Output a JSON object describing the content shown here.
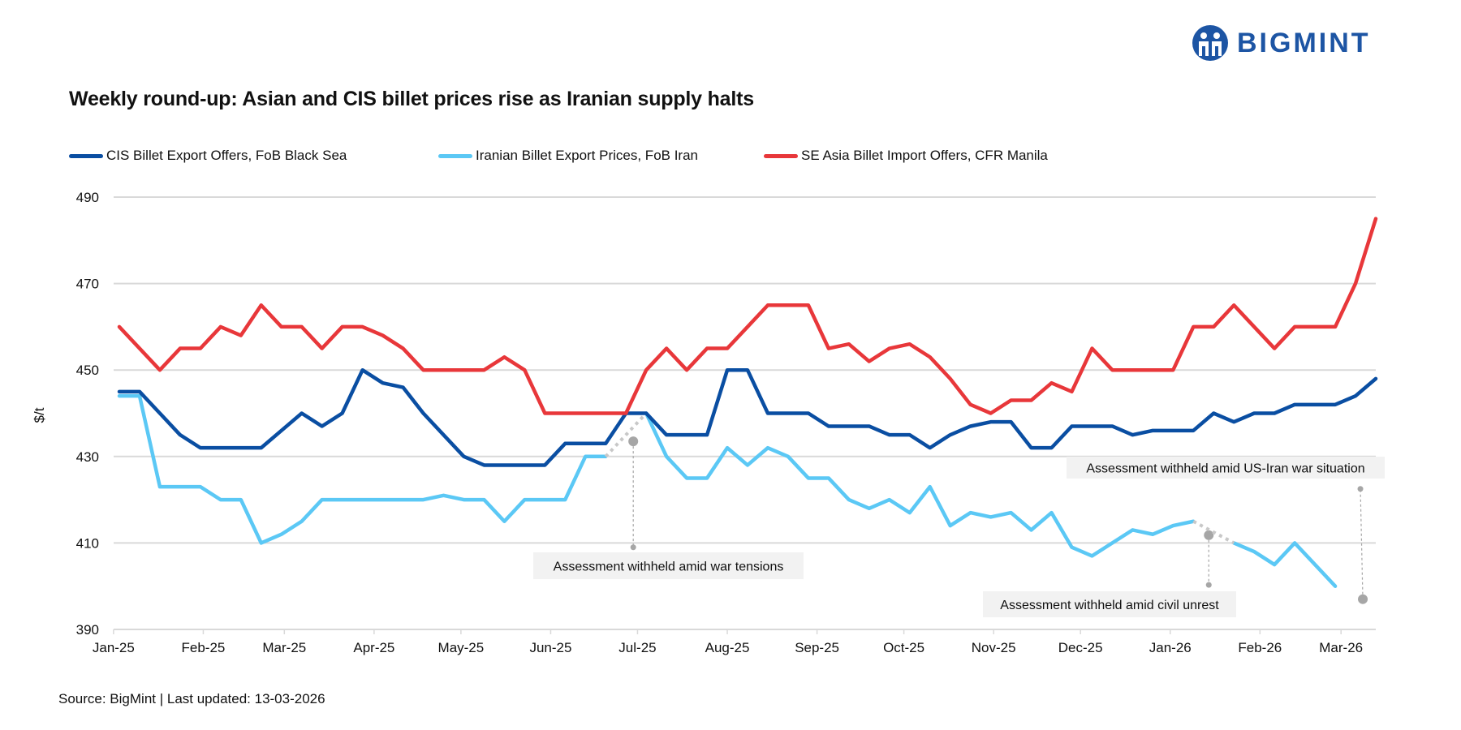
{
  "logo": {
    "text": "BIGMINT",
    "color": "#1d55a4"
  },
  "chart_data": {
    "type": "line",
    "title": "Weekly round-up: Asian and CIS billet prices rise as Iranian supply halts",
    "ylabel": "$/t",
    "xlabel": "",
    "ylim": [
      390,
      490
    ],
    "yticks": [
      390,
      410,
      430,
      450,
      470,
      490
    ],
    "xticks": [
      {
        "label": "Jan-25",
        "date": "2025-01-01"
      },
      {
        "label": "Feb-25",
        "date": "2025-02-01"
      },
      {
        "label": "Mar-25",
        "date": "2025-03-01"
      },
      {
        "label": "Apr-25",
        "date": "2025-04-01"
      },
      {
        "label": "May-25",
        "date": "2025-05-01"
      },
      {
        "label": "Jun-25",
        "date": "2025-06-01"
      },
      {
        "label": "Jul-25",
        "date": "2025-07-01"
      },
      {
        "label": "Aug-25",
        "date": "2025-08-01"
      },
      {
        "label": "Sep-25",
        "date": "2025-09-01"
      },
      {
        "label": "Oct-25",
        "date": "2025-10-01"
      },
      {
        "label": "Nov-25",
        "date": "2025-11-01"
      },
      {
        "label": "Dec-25",
        "date": "2025-12-01"
      },
      {
        "label": "Jan-26",
        "date": "2026-01-01"
      },
      {
        "label": "Feb-26",
        "date": "2026-02-01"
      },
      {
        "label": "Mar-26",
        "date": "2026-03-01"
      }
    ],
    "grid": true,
    "legend": "top",
    "x": [
      "2025-01-03",
      "2025-01-10",
      "2025-01-17",
      "2025-01-24",
      "2025-01-31",
      "2025-02-07",
      "2025-02-14",
      "2025-02-21",
      "2025-02-28",
      "2025-03-07",
      "2025-03-14",
      "2025-03-21",
      "2025-03-28",
      "2025-04-04",
      "2025-04-11",
      "2025-04-18",
      "2025-04-25",
      "2025-05-02",
      "2025-05-09",
      "2025-05-16",
      "2025-05-23",
      "2025-05-30",
      "2025-06-06",
      "2025-06-13",
      "2025-06-20",
      "2025-06-27",
      "2025-07-04",
      "2025-07-11",
      "2025-07-18",
      "2025-07-25",
      "2025-08-01",
      "2025-08-08",
      "2025-08-15",
      "2025-08-22",
      "2025-08-29",
      "2025-09-05",
      "2025-09-12",
      "2025-09-19",
      "2025-09-26",
      "2025-10-03",
      "2025-10-10",
      "2025-10-17",
      "2025-10-24",
      "2025-10-31",
      "2025-11-07",
      "2025-11-14",
      "2025-11-21",
      "2025-11-28",
      "2025-12-05",
      "2025-12-12",
      "2025-12-19",
      "2025-12-26",
      "2026-01-02",
      "2026-01-09",
      "2026-01-16",
      "2026-01-23",
      "2026-01-30",
      "2026-02-06",
      "2026-02-13",
      "2026-02-20",
      "2026-02-27",
      "2026-03-06",
      "2026-03-13"
    ],
    "series": [
      {
        "name": "CIS Billet Export Offers, FoB Black Sea",
        "color": "#0a4ea2",
        "values": [
          445,
          445,
          440,
          435,
          432,
          432,
          432,
          432,
          436,
          440,
          437,
          440,
          450,
          447,
          446,
          440,
          435,
          430,
          428,
          428,
          428,
          428,
          433,
          433,
          433,
          440,
          440,
          435,
          435,
          435,
          450,
          450,
          440,
          440,
          440,
          437,
          437,
          437,
          435,
          435,
          432,
          435,
          437,
          438,
          438,
          432,
          432,
          437,
          437,
          437,
          435,
          436,
          436,
          436,
          440,
          438,
          440,
          440,
          442,
          442,
          442,
          444,
          448
        ]
      },
      {
        "name": "Iranian Billet Export Prices, FoB Iran",
        "color": "#5bc8f5",
        "values": [
          444,
          444,
          423,
          423,
          423,
          420,
          420,
          410,
          412,
          415,
          420,
          420,
          420,
          420,
          420,
          420,
          421,
          420,
          420,
          415,
          420,
          420,
          420,
          430,
          430,
          null,
          440,
          430,
          425,
          425,
          432,
          428,
          432,
          430,
          425,
          425,
          420,
          418,
          420,
          417,
          423,
          414,
          417,
          416,
          417,
          413,
          417,
          409,
          407,
          410,
          413,
          412,
          414,
          415,
          null,
          410,
          408,
          405,
          410,
          405,
          400,
          null,
          null
        ]
      },
      {
        "name": "SE Asia Billet Import Offers, CFR Manila",
        "color": "#e8373a",
        "values": [
          460,
          455,
          450,
          455,
          455,
          460,
          458,
          465,
          460,
          460,
          455,
          460,
          460,
          458,
          455,
          450,
          450,
          450,
          450,
          453,
          450,
          440,
          440,
          440,
          440,
          440,
          450,
          455,
          450,
          455,
          455,
          460,
          465,
          465,
          465,
          455,
          456,
          452,
          455,
          456,
          453,
          448,
          442,
          440,
          443,
          443,
          447,
          445,
          455,
          450,
          450,
          450,
          450,
          460,
          460,
          465,
          460,
          455,
          460,
          460,
          460,
          470,
          485
        ]
      }
    ],
    "annotations": [
      {
        "text": "Assessment withheld amid  war tensions"
      },
      {
        "text": "Assessment withheld amid civil unrest"
      },
      {
        "text": "Assessment withheld amid US-Iran war situation"
      }
    ]
  },
  "source": "Source: BigMint | Last updated: 13-03-2026"
}
